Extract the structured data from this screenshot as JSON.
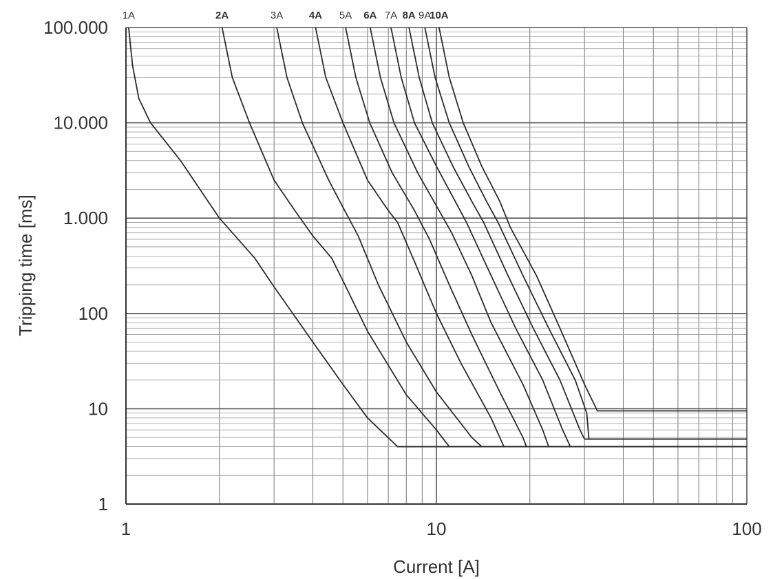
{
  "chart_data": {
    "type": "line",
    "xlabel": "Current [A]",
    "ylabel": "Tripping time [ms]",
    "x_scale": "log",
    "y_scale": "log",
    "xlim": [
      1,
      100
    ],
    "ylim": [
      1,
      100000
    ],
    "grid": true,
    "x_ticks": [
      {
        "value": 1,
        "label": "1"
      },
      {
        "value": 10,
        "label": "10"
      },
      {
        "value": 100,
        "label": "100"
      }
    ],
    "y_ticks": [
      {
        "value": 1,
        "label": "1"
      },
      {
        "value": 10,
        "label": "10"
      },
      {
        "value": 100,
        "label": "100"
      },
      {
        "value": 1000,
        "label": "1.000"
      },
      {
        "value": 10000,
        "label": "10.000"
      },
      {
        "value": 100000,
        "label": "100.000"
      }
    ],
    "series": [
      {
        "name": "1A",
        "bold": false,
        "points": [
          [
            1.02,
            100000
          ],
          [
            1.05,
            40000
          ],
          [
            1.1,
            18000
          ],
          [
            1.2,
            10000
          ],
          [
            1.5,
            4000
          ],
          [
            2,
            1000
          ],
          [
            2.6,
            380
          ],
          [
            3,
            190
          ],
          [
            4,
            50
          ],
          [
            5,
            18
          ],
          [
            6,
            8
          ],
          [
            7.5,
            4
          ],
          [
            100,
            4
          ]
        ]
      },
      {
        "name": "2A",
        "bold": true,
        "points": [
          [
            2.04,
            100000
          ],
          [
            2.2,
            30000
          ],
          [
            2.5,
            10000
          ],
          [
            3,
            2500
          ],
          [
            3.5,
            1200
          ],
          [
            4,
            650
          ],
          [
            4.6,
            380
          ],
          [
            5,
            220
          ],
          [
            6,
            65
          ],
          [
            8,
            14
          ],
          [
            10,
            6
          ],
          [
            11,
            4
          ],
          [
            100,
            4
          ]
        ]
      },
      {
        "name": "3A",
        "bold": false,
        "points": [
          [
            3.06,
            100000
          ],
          [
            3.3,
            30000
          ],
          [
            3.7,
            10000
          ],
          [
            4.5,
            2500
          ],
          [
            5,
            1300
          ],
          [
            5.6,
            650
          ],
          [
            6.5,
            200
          ],
          [
            8,
            50
          ],
          [
            10,
            15
          ],
          [
            13,
            5
          ],
          [
            14,
            4
          ],
          [
            100,
            4
          ]
        ]
      },
      {
        "name": "4A",
        "bold": true,
        "points": [
          [
            4.08,
            100000
          ],
          [
            4.4,
            30000
          ],
          [
            5,
            10000
          ],
          [
            6,
            2500
          ],
          [
            7,
            1200
          ],
          [
            7.5,
            900
          ],
          [
            8.5,
            350
          ],
          [
            10,
            100
          ],
          [
            12,
            30
          ],
          [
            15,
            8
          ],
          [
            16.5,
            4
          ],
          [
            100,
            4
          ]
        ]
      },
      {
        "name": "5A",
        "bold": false,
        "points": [
          [
            5.1,
            100000
          ],
          [
            5.5,
            30000
          ],
          [
            6.1,
            10000
          ],
          [
            7.2,
            3000
          ],
          [
            8.5,
            1200
          ],
          [
            9.5,
            600
          ],
          [
            11,
            200
          ],
          [
            13,
            60
          ],
          [
            16,
            15
          ],
          [
            19,
            5
          ],
          [
            19.5,
            4
          ],
          [
            100,
            4
          ]
        ]
      },
      {
        "name": "6A",
        "bold": true,
        "points": [
          [
            6.12,
            100000
          ],
          [
            6.6,
            30000
          ],
          [
            7.3,
            10000
          ],
          [
            8.7,
            3000
          ],
          [
            10.2,
            1200
          ],
          [
            11.2,
            700
          ],
          [
            13,
            250
          ],
          [
            15,
            80
          ],
          [
            19,
            18
          ],
          [
            22,
            6
          ],
          [
            23,
            4
          ],
          [
            100,
            4
          ]
        ]
      },
      {
        "name": "7A",
        "bold": false,
        "points": [
          [
            7.14,
            100000
          ],
          [
            7.7,
            30000
          ],
          [
            8.5,
            10000
          ],
          [
            10,
            3500
          ],
          [
            11.5,
            1500
          ],
          [
            12.5,
            900
          ],
          [
            15,
            250
          ],
          [
            18,
            70
          ],
          [
            22,
            20
          ],
          [
            25.5,
            6
          ],
          [
            27,
            4
          ],
          [
            100,
            4
          ]
        ]
      },
      {
        "name": "8A",
        "bold": true,
        "points": [
          [
            8.16,
            100000
          ],
          [
            8.8,
            30000
          ],
          [
            9.7,
            10000
          ],
          [
            11.3,
            3500
          ],
          [
            13,
            1500
          ],
          [
            14.2,
            900
          ],
          [
            17,
            250
          ],
          [
            20.5,
            70
          ],
          [
            25,
            20
          ],
          [
            29,
            6
          ],
          [
            30,
            4.8
          ],
          [
            100,
            4.8
          ]
        ]
      },
      {
        "name": "9A",
        "bold": false,
        "points": [
          [
            9.18,
            100000
          ],
          [
            9.9,
            30000
          ],
          [
            11,
            10000
          ],
          [
            12.7,
            3500
          ],
          [
            14.5,
            1500
          ],
          [
            15.8,
            900
          ],
          [
            19,
            250
          ],
          [
            23,
            70
          ],
          [
            28,
            20
          ],
          [
            30.5,
            9
          ],
          [
            31,
            4.8
          ],
          [
            100,
            4.8
          ]
        ]
      },
      {
        "name": "10A",
        "bold": true,
        "points": [
          [
            10.2,
            100000
          ],
          [
            11,
            30000
          ],
          [
            12.2,
            10000
          ],
          [
            14,
            3500
          ],
          [
            16,
            1500
          ],
          [
            17.3,
            800
          ],
          [
            21,
            250
          ],
          [
            25,
            70
          ],
          [
            30,
            18
          ],
          [
            33,
            9.5
          ],
          [
            100,
            9.5
          ]
        ]
      }
    ]
  }
}
